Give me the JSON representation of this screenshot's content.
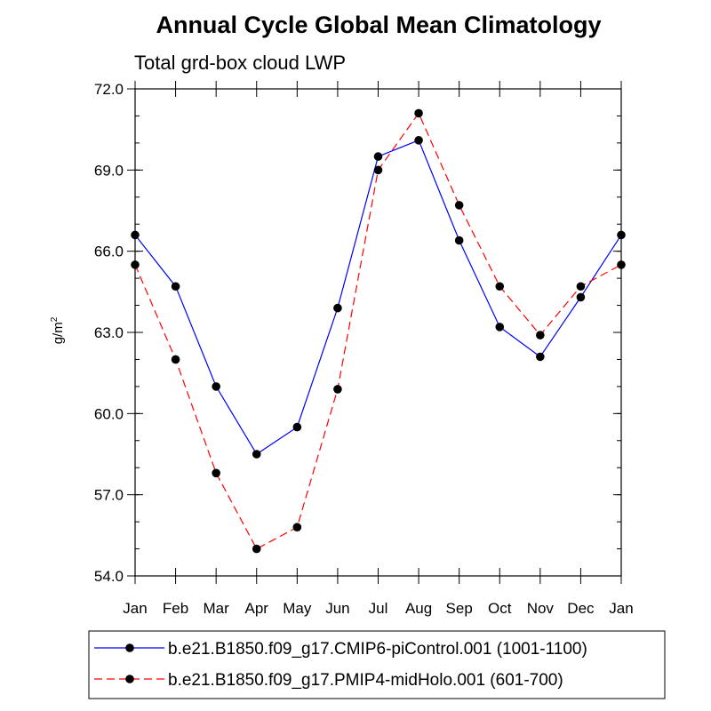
{
  "chart_data": {
    "type": "line",
    "title": "Annual Cycle Global Mean Climatology",
    "subtitle": "Total grd-box cloud LWP",
    "xlabel": "",
    "ylabel": "g/m",
    "ylabel_superscript": "2",
    "categories": [
      "Jan",
      "Feb",
      "Mar",
      "Apr",
      "May",
      "Jun",
      "Jul",
      "Aug",
      "Sep",
      "Oct",
      "Nov",
      "Dec",
      "Jan"
    ],
    "ylim": [
      54.0,
      72.0
    ],
    "yticks": [
      "54.0",
      "57.0",
      "60.0",
      "63.0",
      "66.0",
      "69.0",
      "72.0"
    ],
    "grid": false,
    "legend_position": "bottom",
    "series": [
      {
        "name": "b.e21.B1850.f09_g17.CMIP6-piControl.001 (1001-1100)",
        "color": "#0000ff",
        "dash": "solid",
        "values": [
          66.6,
          64.7,
          61.0,
          58.5,
          59.5,
          63.9,
          69.5,
          70.1,
          66.4,
          63.2,
          62.1,
          64.3,
          66.6
        ]
      },
      {
        "name": "b.e21.B1850.f09_g17.PMIP4-midHolo.001 (601-700)",
        "color": "#ff0000",
        "dash": "dashed",
        "values": [
          65.5,
          62.0,
          57.8,
          55.0,
          55.8,
          60.9,
          69.0,
          71.1,
          67.7,
          64.7,
          62.9,
          64.7,
          65.5
        ]
      }
    ]
  }
}
